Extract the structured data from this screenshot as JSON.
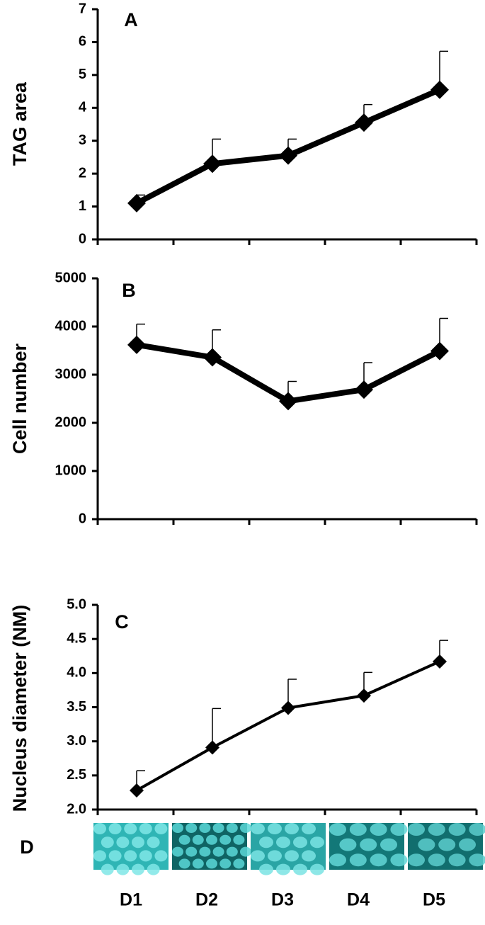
{
  "chart_data": [
    {
      "type": "line",
      "panel_label": "A",
      "y_label": "TAG area",
      "color": "#000000",
      "values": [
        1.1,
        2.3,
        2.55,
        3.55,
        4.55
      ],
      "errors": [
        0.25,
        0.75,
        0.5,
        0.55,
        1.17
      ],
      "ylim": [
        0,
        7
      ],
      "yticks": [
        0,
        1,
        2,
        3,
        4,
        5,
        6,
        7
      ]
    },
    {
      "type": "line",
      "panel_label": "B",
      "y_label": "Cell number",
      "color": "#000000",
      "values": [
        3620,
        3360,
        2450,
        2690,
        3490
      ],
      "errors": [
        430,
        570,
        410,
        560,
        680
      ],
      "ylim": [
        0,
        5000
      ],
      "yticks": [
        0,
        1000,
        2000,
        3000,
        4000,
        5000
      ]
    },
    {
      "type": "line",
      "panel_label": "C",
      "y_label": "Nucleus diameter (NM)",
      "color": "#000000",
      "categories": [
        "D1",
        "D2",
        "D3",
        "D4",
        "D5"
      ],
      "values": [
        2.28,
        2.91,
        3.49,
        3.67,
        4.17
      ],
      "errors": [
        0.29,
        0.57,
        0.42,
        0.34,
        0.31
      ],
      "ylim": [
        2,
        5
      ],
      "yticks": [
        {
          "value": 2,
          "label": "2.0"
        },
        2.5,
        {
          "value": 3,
          "label": "3.0"
        },
        3.5,
        {
          "value": 4,
          "label": "4.0"
        },
        4.5,
        {
          "value": 5,
          "label": "5.0"
        }
      ]
    }
  ],
  "panel_d": {
    "label": "D"
  }
}
